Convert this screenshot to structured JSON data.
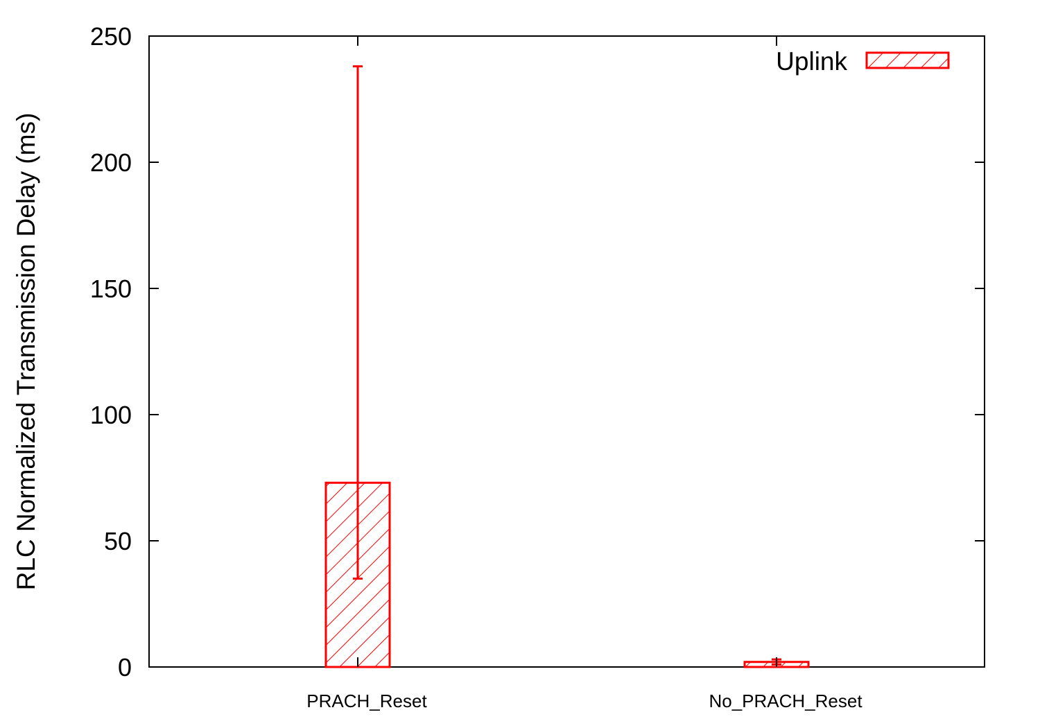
{
  "chart_data": {
    "type": "bar",
    "categories": [
      "PRACH_Reset",
      "No_PRACH_Reset"
    ],
    "series": [
      {
        "name": "Uplink",
        "values": [
          73,
          2
        ],
        "error_low": [
          35,
          1
        ],
        "error_high": [
          238,
          3
        ]
      }
    ],
    "ylabel": "RLC Normalized Transmission Delay (ms)",
    "xlabel": "",
    "ylim": [
      0,
      250
    ],
    "yticks": [
      0,
      50,
      100,
      150,
      200,
      250
    ],
    "grid": false,
    "legend_position": "top-right",
    "color": "#ff0000",
    "fill_pattern": "diagonal-hatch"
  }
}
